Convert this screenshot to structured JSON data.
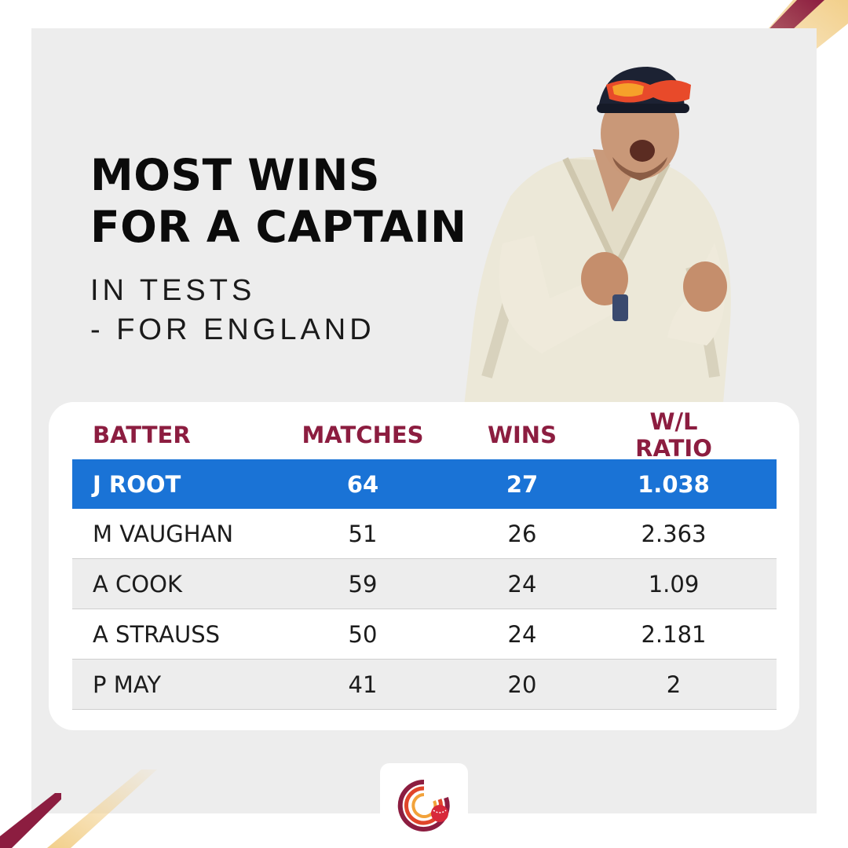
{
  "heading": {
    "line1": "MOST WINS",
    "line2": "FOR A CAPTAIN",
    "sub1": "IN TESTS",
    "sub2": "- FOR ENGLAND"
  },
  "table": {
    "headers": [
      "BATTER",
      "MATCHES",
      "WINS",
      "W/L RATIO"
    ],
    "rows": [
      {
        "name": "J ROOT",
        "matches": "64",
        "wins": "27",
        "ratio": "1.038",
        "highlight": true
      },
      {
        "name": "M VAUGHAN",
        "matches": "51",
        "wins": "26",
        "ratio": "2.363"
      },
      {
        "name": "A COOK",
        "matches": "59",
        "wins": "24",
        "ratio": "1.09"
      },
      {
        "name": "A STRAUSS",
        "matches": "50",
        "wins": "24",
        "ratio": "2.181"
      },
      {
        "name": "P MAY",
        "matches": "41",
        "wins": "20",
        "ratio": "2"
      }
    ]
  },
  "colors": {
    "accent": "#8c1d40",
    "highlight": "#1a73d6",
    "gold": "#f2cf8a",
    "panel": "#ededed"
  }
}
